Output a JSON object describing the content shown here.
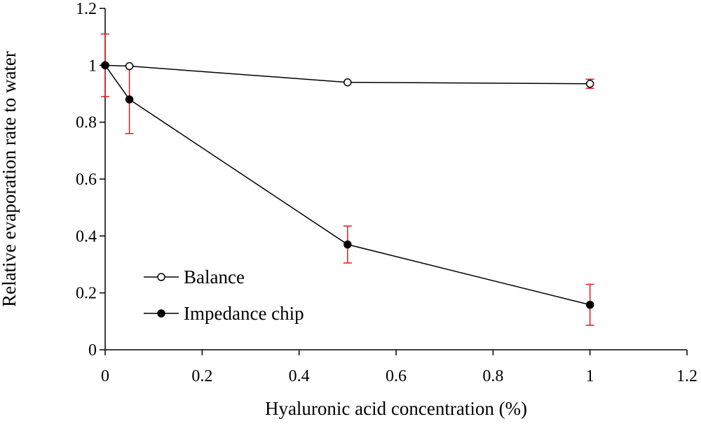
{
  "chart_data": {
    "type": "scatter",
    "title": "",
    "xlabel": "Hyaluronic acid concentration (%)",
    "ylabel": "Relative evaporation rate to water",
    "xlim": [
      0,
      1.2
    ],
    "ylim": [
      0,
      1.2
    ],
    "xticks": [
      "0",
      "0.2",
      "0.4",
      "0.6",
      "0.8",
      "1",
      "1.2"
    ],
    "yticks": [
      "0",
      "0.2",
      "0.4",
      "0.6",
      "0.8",
      "1",
      "1.2"
    ],
    "grid": false,
    "legend_position": "bottom-left",
    "error_bar_color": "#e31a1c",
    "series": [
      {
        "name": "Balance",
        "marker": "open-circle",
        "color": "#000000",
        "x": [
          0,
          0.05,
          0.5,
          1
        ],
        "y": [
          1.0,
          0.997,
          0.94,
          0.935
        ],
        "error": [
          0.11,
          0.0,
          0.0,
          0.016
        ]
      },
      {
        "name": "Impedance chip",
        "marker": "filled-circle",
        "color": "#000000",
        "x": [
          0,
          0.05,
          0.5,
          1
        ],
        "y": [
          1.0,
          0.88,
          0.37,
          0.158
        ],
        "error": [
          0.0,
          0.12,
          0.065,
          0.072
        ]
      }
    ]
  }
}
